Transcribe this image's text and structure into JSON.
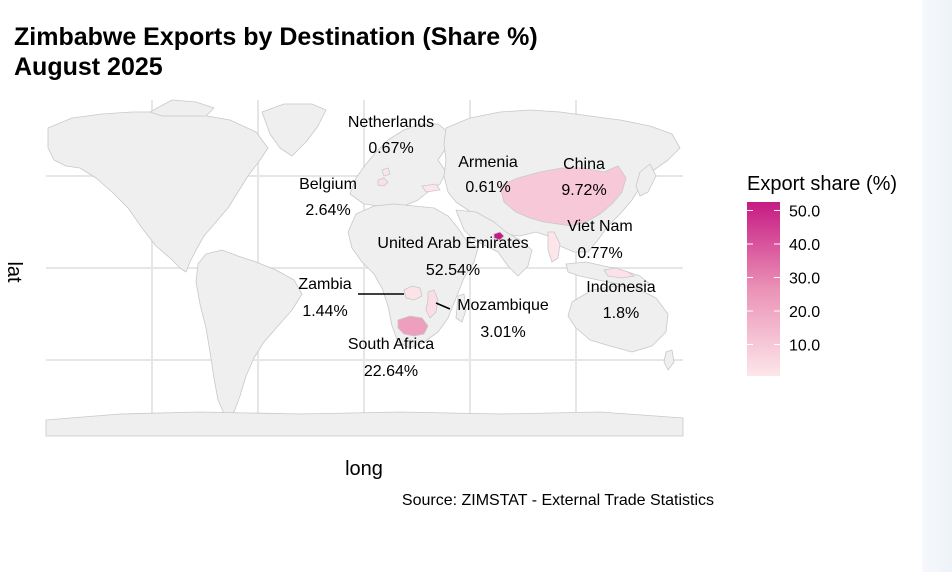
{
  "chart_data": {
    "type": "choropleth-map",
    "title_line1": "Zimbabwe Exports by Destination (Share %)",
    "title_line2": "August 2025",
    "xlabel": "long",
    "ylabel": "lat",
    "caption": "Source: ZIMSTAT - External Trade Statistics",
    "legend": {
      "title": "Export share (%)",
      "ticks": [
        "10.0",
        "20.0",
        "30.0",
        "40.0",
        "50.0"
      ],
      "tick_values": [
        10,
        20,
        30,
        40,
        50
      ],
      "range": [
        0.61,
        52.54
      ],
      "low_color": "#fde6ea",
      "high_color": "#c61a84"
    },
    "grid": true,
    "base_land_color": "#efefef",
    "border_color": "#c8c8c8",
    "countries": [
      {
        "name": "United Arab Emirates",
        "value": 52.54,
        "label": "52.54%"
      },
      {
        "name": "South Africa",
        "value": 22.64,
        "label": "22.64%"
      },
      {
        "name": "China",
        "value": 9.72,
        "label": "9.72%"
      },
      {
        "name": "Mozambique",
        "value": 3.01,
        "label": "3.01%"
      },
      {
        "name": "Belgium",
        "value": 2.64,
        "label": "2.64%"
      },
      {
        "name": "Indonesia",
        "value": 1.8,
        "label": "1.8%"
      },
      {
        "name": "Zambia",
        "value": 1.44,
        "label": "1.44%"
      },
      {
        "name": "Viet Nam",
        "value": 0.77,
        "label": "0.77%"
      },
      {
        "name": "Netherlands",
        "value": 0.67,
        "label": "0.67%"
      },
      {
        "name": "Armenia",
        "value": 0.61,
        "label": "0.61%"
      }
    ]
  }
}
